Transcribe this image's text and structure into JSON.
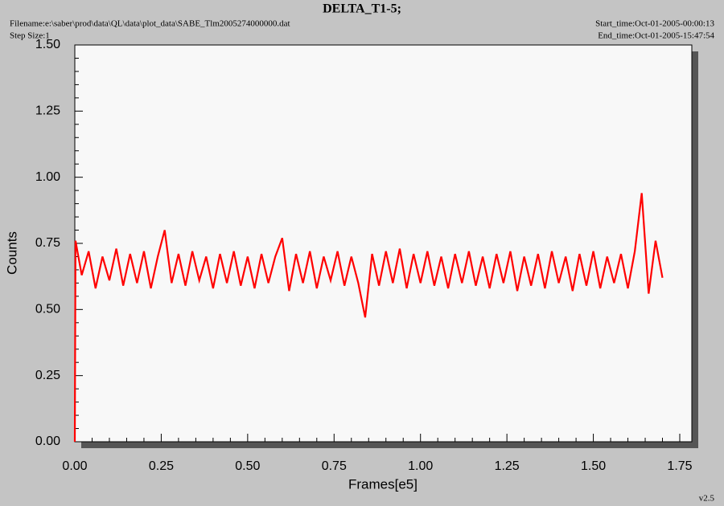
{
  "chart_data": {
    "type": "line",
    "title": "DELTA_T1-5;",
    "filename": "Filename:e:\\saber\\prod\\data\\QL\\data\\plot_data\\SABE_Tlm2005274000000.dat",
    "step_size": "Step Size:1",
    "start_time": "Start_time:Oct-01-2005-00:00:13",
    "end_time": "End_time:Oct-01-2005-15:47:54",
    "version": "v2.5",
    "x_label": "Frames[e5]",
    "y_label": "Counts",
    "xlim": [
      0,
      1.75
    ],
    "ylim": [
      0,
      1.5
    ],
    "xticks": [
      {
        "value": 0,
        "label": "0.00"
      },
      {
        "value": 0.25,
        "label": "0.25"
      },
      {
        "value": 0.5,
        "label": "0.50"
      },
      {
        "value": 0.75,
        "label": "0.75"
      },
      {
        "value": 1,
        "label": "1.00"
      },
      {
        "value": 1.25,
        "label": "1.25"
      },
      {
        "value": 1.5,
        "label": "1.50"
      },
      {
        "value": 1.75,
        "label": "1.75"
      }
    ],
    "yticks": [
      {
        "value": 0,
        "label": "0.00"
      },
      {
        "value": 0.25,
        "label": "0.25"
      },
      {
        "value": 0.5,
        "label": "0.50"
      },
      {
        "value": 0.75,
        "label": "0.75"
      },
      {
        "value": 1,
        "label": "1.00"
      },
      {
        "value": 1.25,
        "label": "1.25"
      },
      {
        "value": 1.5,
        "label": "1.50"
      }
    ],
    "xminorticks": [
      0.05,
      0.1,
      0.15,
      0.2,
      0.3,
      0.35,
      0.4,
      0.45,
      0.55,
      0.6,
      0.65,
      0.7,
      0.8,
      0.85,
      0.9,
      0.95,
      1.05,
      1.1,
      1.15,
      1.2,
      1.3,
      1.35,
      1.4,
      1.45,
      1.55,
      1.6,
      1.65,
      1.7
    ],
    "yminorticks": [
      0.05,
      0.1,
      0.15,
      0.2,
      0.3,
      0.35,
      0.4,
      0.45,
      0.55,
      0.6,
      0.65,
      0.7,
      0.8,
      0.85,
      0.9,
      0.95,
      1.05,
      1.1,
      1.15,
      1.2,
      1.3,
      1.35,
      1.4,
      1.45
    ],
    "x": [
      0,
      0.002,
      0.02,
      0.04,
      0.06,
      0.08,
      0.1,
      0.12,
      0.14,
      0.16,
      0.18,
      0.2,
      0.22,
      0.24,
      0.26,
      0.28,
      0.3,
      0.32,
      0.34,
      0.36,
      0.38,
      0.4,
      0.42,
      0.44,
      0.46,
      0.48,
      0.5,
      0.52,
      0.54,
      0.56,
      0.58,
      0.6,
      0.62,
      0.64,
      0.66,
      0.68,
      0.7,
      0.72,
      0.74,
      0.76,
      0.78,
      0.8,
      0.82,
      0.84,
      0.86,
      0.88,
      0.9,
      0.92,
      0.94,
      0.96,
      0.98,
      1,
      1.02,
      1.04,
      1.06,
      1.08,
      1.1,
      1.12,
      1.14,
      1.16,
      1.18,
      1.2,
      1.22,
      1.24,
      1.26,
      1.28,
      1.3,
      1.32,
      1.34,
      1.36,
      1.38,
      1.4,
      1.42,
      1.44,
      1.46,
      1.48,
      1.5,
      1.52,
      1.54,
      1.56,
      1.58,
      1.6,
      1.62,
      1.64,
      1.66,
      1.68,
      1.7
    ],
    "series": [
      {
        "name": "Counts",
        "color": "#ff0000",
        "values": [
          0,
          0.76,
          0.63,
          0.72,
          0.58,
          0.7,
          0.61,
          0.73,
          0.59,
          0.71,
          0.6,
          0.72,
          0.58,
          0.7,
          0.8,
          0.6,
          0.71,
          0.59,
          0.72,
          0.61,
          0.7,
          0.58,
          0.71,
          0.6,
          0.72,
          0.59,
          0.7,
          0.58,
          0.71,
          0.6,
          0.7,
          0.77,
          0.57,
          0.71,
          0.6,
          0.72,
          0.58,
          0.7,
          0.61,
          0.72,
          0.59,
          0.7,
          0.6,
          0.47,
          0.71,
          0.59,
          0.72,
          0.6,
          0.73,
          0.58,
          0.71,
          0.6,
          0.72,
          0.59,
          0.7,
          0.58,
          0.71,
          0.6,
          0.72,
          0.59,
          0.7,
          0.58,
          0.71,
          0.6,
          0.72,
          0.57,
          0.7,
          0.59,
          0.71,
          0.58,
          0.72,
          0.6,
          0.7,
          0.57,
          0.71,
          0.59,
          0.72,
          0.58,
          0.7,
          0.6,
          0.71,
          0.58,
          0.72,
          0.94,
          0.56,
          0.76,
          0.62
        ]
      }
    ]
  }
}
